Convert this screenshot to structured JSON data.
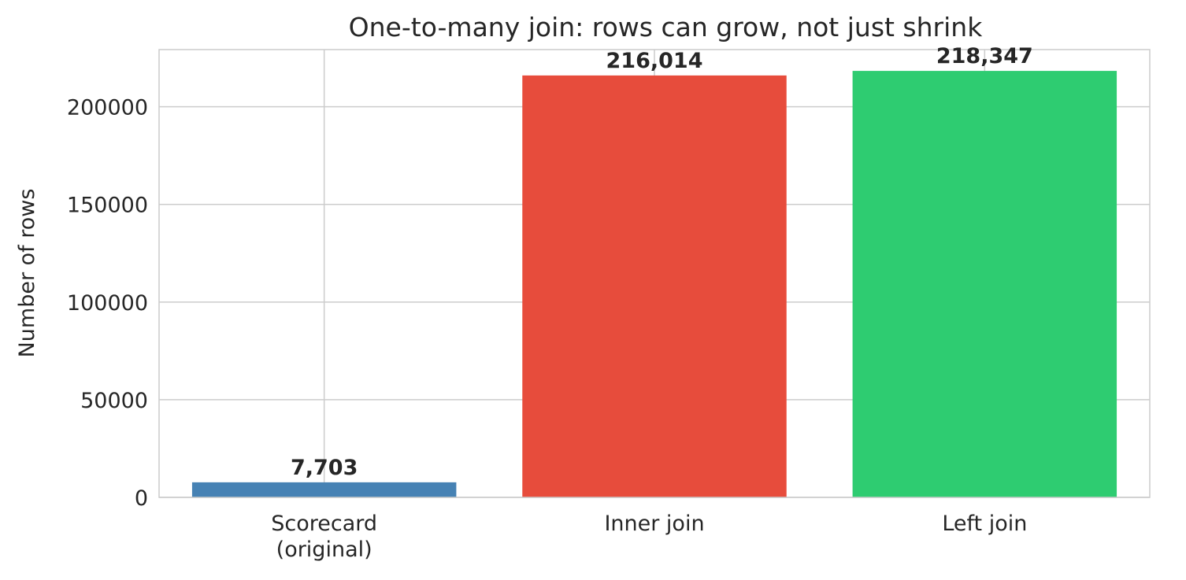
{
  "chart_data": {
    "type": "bar",
    "title": "One-to-many join: rows can grow, not just shrink",
    "xlabel": "",
    "ylabel": "Number of rows",
    "categories": [
      [
        "Scorecard",
        "(original)"
      ],
      [
        "Inner join"
      ],
      [
        "Left join"
      ]
    ],
    "values": [
      7703,
      216014,
      218347
    ],
    "value_labels": [
      "7,703",
      "216,014",
      "218,347"
    ],
    "colors": [
      "#4682b4",
      "#e74c3c",
      "#2ecc71"
    ],
    "yticks": [
      0,
      50000,
      100000,
      150000,
      200000
    ],
    "ylim": [
      0,
      229264
    ],
    "grid": true,
    "legend": "none"
  }
}
